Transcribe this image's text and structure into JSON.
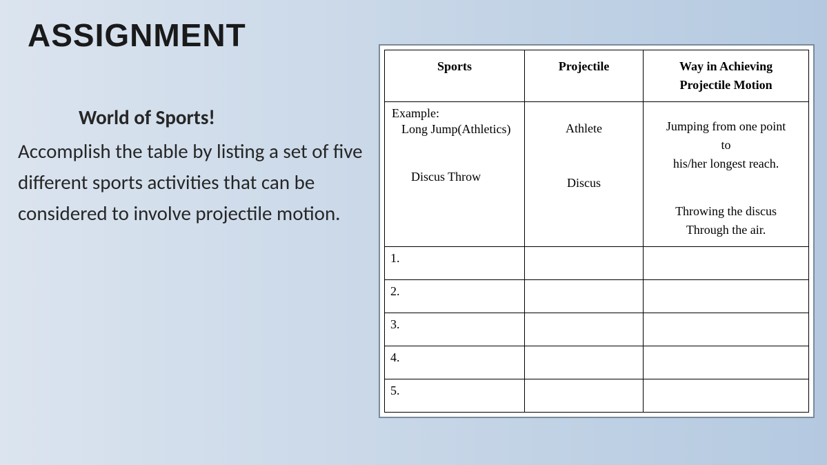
{
  "background_gradient": [
    "#dbe4ef",
    "#b4c9e0"
  ],
  "title": "ASSIGNMENT",
  "subtitle": "World of Sports!",
  "body_text": "Accomplish the table by listing a set of five different sports activities that can be considered to involve projectile motion.",
  "table": {
    "type": "table",
    "border_color": "#000000",
    "outer_border_color": "#7a8a9a",
    "background_color": "#ffffff",
    "font_family": "Times New Roman",
    "header_fontsize": 18,
    "cell_fontsize": 18,
    "columns": [
      {
        "label": "Sports",
        "width_pct": 33,
        "align": "center"
      },
      {
        "label": "Projectile",
        "width_pct": 28,
        "align": "center"
      },
      {
        "label": "Way in Achieving Projectile Motion",
        "width_pct": 39,
        "align": "center"
      }
    ],
    "example": {
      "label": "Example:",
      "sports1": "Long Jump(Athletics)",
      "projectile1": "Athlete",
      "way1_line1": "Jumping from one point",
      "way1_line2": "to",
      "way1_line3": "his/her longest reach.",
      "sports2": "Discus Throw",
      "projectile2": "Discus",
      "way2_line1": "Throwing the discus",
      "way2_line2": "Through the air."
    },
    "blank_rows": [
      "1.",
      "2.",
      "3.",
      "4.",
      "5."
    ]
  },
  "typography": {
    "title_font": "Arial Black",
    "title_fontsize": 46,
    "title_weight": 900,
    "body_font": "Calibri",
    "body_fontsize": 29,
    "subtitle_weight": 700,
    "text_color": "#262626"
  }
}
